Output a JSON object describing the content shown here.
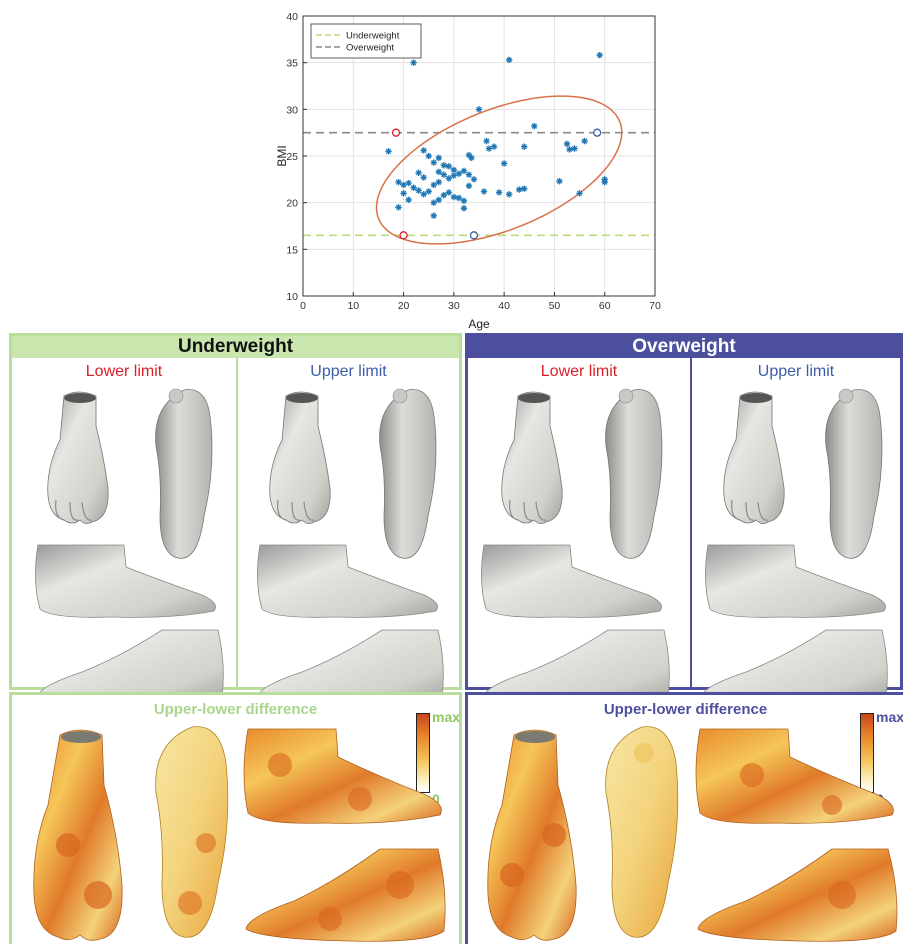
{
  "chart_data": {
    "type": "scatter",
    "xlabel": "Age",
    "ylabel": "BMI",
    "xlim": [
      0,
      70
    ],
    "ylim": [
      10,
      40
    ],
    "xticks": [
      0,
      10,
      20,
      30,
      40,
      50,
      60,
      70
    ],
    "yticks": [
      10,
      15,
      20,
      25,
      30,
      35,
      40
    ],
    "grid": true,
    "legend_position": "top-left",
    "reference_lines": [
      {
        "name": "Underweight",
        "y": 16.5,
        "color": "#b8dc7a",
        "style": "dashed"
      },
      {
        "name": "Overweight",
        "y": 27.5,
        "color": "#8a8a8a",
        "style": "dashed"
      }
    ],
    "ellipse": {
      "center": [
        39,
        23.5
      ],
      "color": "#d9714a"
    },
    "limit_markers": [
      {
        "x": 18.5,
        "y": 27.5,
        "color": "#d6202a"
      },
      {
        "x": 20,
        "y": 16.5,
        "color": "#d6202a"
      },
      {
        "x": 34,
        "y": 16.5,
        "color": "#3c5ca8"
      },
      {
        "x": 58.5,
        "y": 27.5,
        "color": "#3c5ca8"
      }
    ],
    "series": [
      {
        "marker": "asterisk",
        "color": "#1f77b4",
        "points": [
          [
            22,
            35
          ],
          [
            41,
            35.3
          ],
          [
            59,
            35.8
          ],
          [
            35,
            30
          ],
          [
            46,
            28.2
          ],
          [
            36.5,
            26.6
          ],
          [
            17,
            25.5
          ],
          [
            37,
            25.8
          ],
          [
            38,
            26
          ],
          [
            44,
            26
          ],
          [
            52.5,
            26.3
          ],
          [
            53,
            25.7
          ],
          [
            54,
            25.8
          ],
          [
            56,
            26.6
          ],
          [
            33,
            25.1
          ],
          [
            33.5,
            24.8
          ],
          [
            40,
            24.2
          ],
          [
            24,
            25.6
          ],
          [
            25,
            25
          ],
          [
            26,
            24.3
          ],
          [
            27,
            24.8
          ],
          [
            28,
            24
          ],
          [
            29,
            23.9
          ],
          [
            30,
            23.5
          ],
          [
            31,
            23.1
          ],
          [
            27,
            23.3
          ],
          [
            28,
            23
          ],
          [
            29,
            22.6
          ],
          [
            30,
            22.9
          ],
          [
            32,
            23.4
          ],
          [
            33,
            23
          ],
          [
            34,
            22.5
          ],
          [
            19,
            22.2
          ],
          [
            20,
            21.9
          ],
          [
            21,
            22.1
          ],
          [
            22,
            21.6
          ],
          [
            23,
            23.2
          ],
          [
            24,
            22.7
          ],
          [
            25,
            21.2
          ],
          [
            26,
            21.9
          ],
          [
            27,
            22.2
          ],
          [
            28,
            20.8
          ],
          [
            29,
            21.1
          ],
          [
            30,
            20.6
          ],
          [
            32,
            20.2
          ],
          [
            33,
            21.8
          ],
          [
            20,
            21
          ],
          [
            23,
            21.3
          ],
          [
            24,
            20.9
          ],
          [
            21,
            20.3
          ],
          [
            19,
            19.5
          ],
          [
            26,
            20
          ],
          [
            27,
            20.3
          ],
          [
            31,
            20.5
          ],
          [
            32,
            19.4
          ],
          [
            26,
            18.6
          ],
          [
            36,
            21.2
          ],
          [
            39,
            21.1
          ],
          [
            41,
            20.9
          ],
          [
            43,
            21.4
          ],
          [
            44,
            21.5
          ],
          [
            51,
            22.3
          ],
          [
            55,
            21
          ],
          [
            60,
            22.5
          ],
          [
            60,
            22.2
          ]
        ]
      }
    ]
  },
  "underweight_panel": {
    "title": "Underweight",
    "lower_label": "Lower limit",
    "upper_label": "Upper limit",
    "difference_title": "Upper-lower difference",
    "colorbar_max": "max",
    "colorbar_min": "0"
  },
  "overweight_panel": {
    "title": "Overweight",
    "lower_label": "Lower limit",
    "upper_label": "Upper limit",
    "difference_title": "Upper-lower difference",
    "colorbar_max": "max",
    "colorbar_min": "0"
  }
}
